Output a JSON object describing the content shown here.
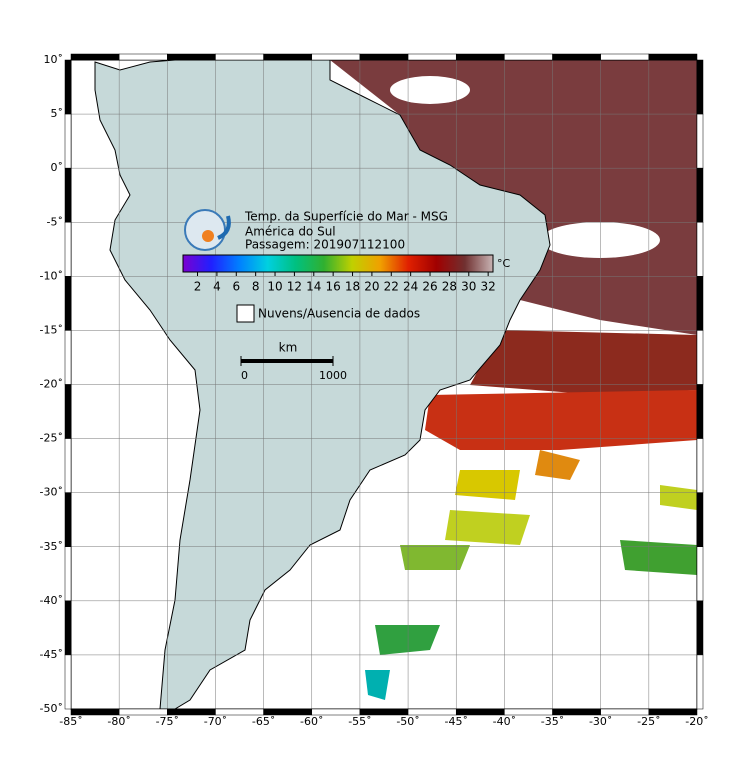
{
  "map": {
    "title": "Temp. da Superfície do Mar - MSG",
    "region": "América do Sul",
    "pass": "Passagem: 201907112100",
    "xlim": [
      -85,
      -20
    ],
    "ylim": [
      -50,
      10
    ],
    "grid": true,
    "xticks": [
      {
        "value": -85,
        "label": "-85˚"
      },
      {
        "value": -80,
        "label": "-80˚"
      },
      {
        "value": -75,
        "label": "-75˚"
      },
      {
        "value": -70,
        "label": "-70˚"
      },
      {
        "value": -65,
        "label": "-65˚"
      },
      {
        "value": -60,
        "label": "-60˚"
      },
      {
        "value": -55,
        "label": "-55˚"
      },
      {
        "value": -50,
        "label": "-50˚"
      },
      {
        "value": -45,
        "label": "-45˚"
      },
      {
        "value": -40,
        "label": "-40˚"
      },
      {
        "value": -35,
        "label": "-35˚"
      },
      {
        "value": -30,
        "label": "-30˚"
      },
      {
        "value": -25,
        "label": "-25˚"
      },
      {
        "value": -20,
        "label": "-20˚"
      }
    ],
    "yticks": [
      {
        "value": 10,
        "label": "10˚"
      },
      {
        "value": 5,
        "label": "5˚"
      },
      {
        "value": 0,
        "label": "0˚"
      },
      {
        "value": -5,
        "label": "-5˚"
      },
      {
        "value": -10,
        "label": "-10˚"
      },
      {
        "value": -15,
        "label": "-15˚"
      },
      {
        "value": -20,
        "label": "-20˚"
      },
      {
        "value": -25,
        "label": "-25˚"
      },
      {
        "value": -30,
        "label": "-30˚"
      },
      {
        "value": -35,
        "label": "-35˚"
      },
      {
        "value": -40,
        "label": "-40˚"
      },
      {
        "value": -45,
        "label": "-45˚"
      },
      {
        "value": -50,
        "label": "-50˚"
      }
    ]
  },
  "colorbar": {
    "unit": "°C",
    "lim": [
      0.5,
      32.5
    ],
    "ticks": [
      2,
      4,
      6,
      8,
      10,
      12,
      14,
      16,
      18,
      20,
      22,
      24,
      26,
      28,
      30,
      32
    ],
    "colors": [
      "#7a00d0",
      "#2020ff",
      "#0080ff",
      "#00d0e0",
      "#00c080",
      "#30b030",
      "#c0d000",
      "#f0a000",
      "#e02000",
      "#a00000",
      "#703030",
      "#c8b4b4"
    ]
  },
  "legend": {
    "label": "Nuvens/Ausencia de dados"
  },
  "scale": {
    "unit": "km",
    "ticks": [
      0,
      1000
    ]
  }
}
